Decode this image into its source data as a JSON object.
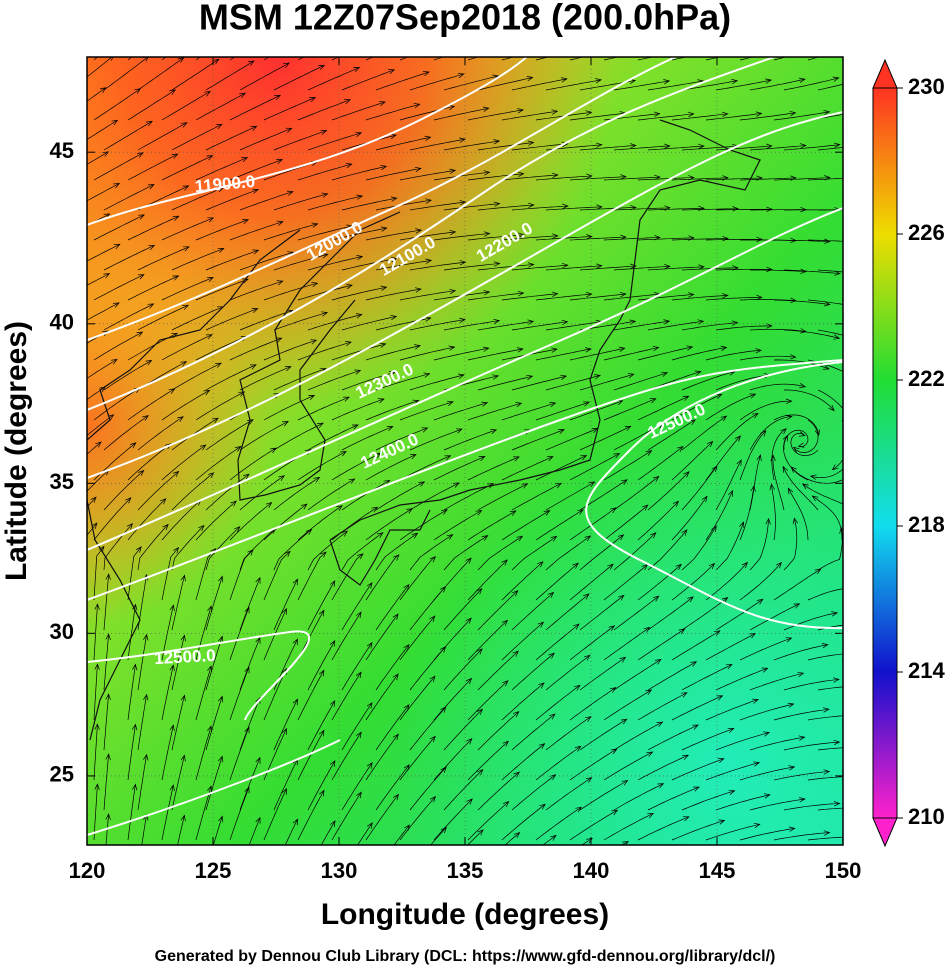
{
  "header": {
    "title": "MSM 12Z07Sep2018 (200.0hPa)"
  },
  "map": {
    "xlabel": "Longitude (degrees)",
    "ylabel": "Latitude  (degrees)",
    "xlim": [
      120,
      150
    ],
    "ylim": [
      22.5,
      47.6
    ],
    "xticks": [
      120,
      125,
      130,
      135,
      140,
      145,
      150
    ],
    "yticks": [
      25,
      30,
      35,
      40,
      45
    ],
    "grid": true,
    "contour_labels": [
      "11900.0",
      "12000.0",
      "12100.0",
      "12200.0",
      "12300.0",
      "12400.0",
      "12500.0",
      "12500.0"
    ]
  },
  "colorbar": {
    "lim": [
      210,
      230
    ],
    "ticks": [
      210,
      214,
      218,
      222,
      226,
      230
    ],
    "colors": [
      "#ff22cc",
      "#1111cc",
      "#11ddee",
      "#22dd33",
      "#eedd00",
      "#ff3322"
    ]
  },
  "footer": "Generated by Dennou Club Library (DCL: https://www.gfd-dennou.org/library/dcl/)"
}
